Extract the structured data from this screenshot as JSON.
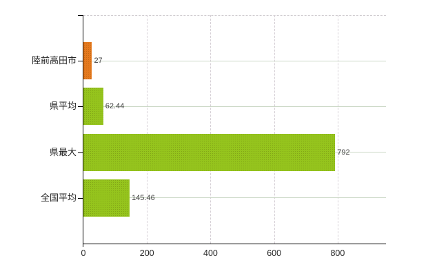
{
  "chart_data": {
    "type": "bar",
    "orientation": "horizontal",
    "title": "",
    "xlabel": "",
    "ylabel": "",
    "categories": [
      "陸前高田市",
      "県平均",
      "県最大",
      "全国平均"
    ],
    "values": [
      27,
      62.44,
      792,
      145.46
    ],
    "value_labels": [
      "27",
      "62.44",
      "792",
      "145.46"
    ],
    "bar_colors": [
      "#e5791e",
      "#95c41d",
      "#95c41d",
      "#95c41d"
    ],
    "x_tick_labels": [
      "0",
      "200",
      "400",
      "600",
      "800"
    ],
    "x_tick_values": [
      0,
      200,
      400,
      600,
      800
    ],
    "xlim": [
      0,
      952
    ],
    "grid": {
      "vertical": "dashed",
      "horizontal": "solid"
    },
    "legend": "none",
    "background_color": "#ffffff",
    "axis_color": "#000000",
    "value_label_color": "#3f3f3f",
    "tick_label_color": "#262626",
    "horizontal_gridline_color": "#cbd8c6",
    "vertical_gridline_color": "#d6d0d6"
  }
}
